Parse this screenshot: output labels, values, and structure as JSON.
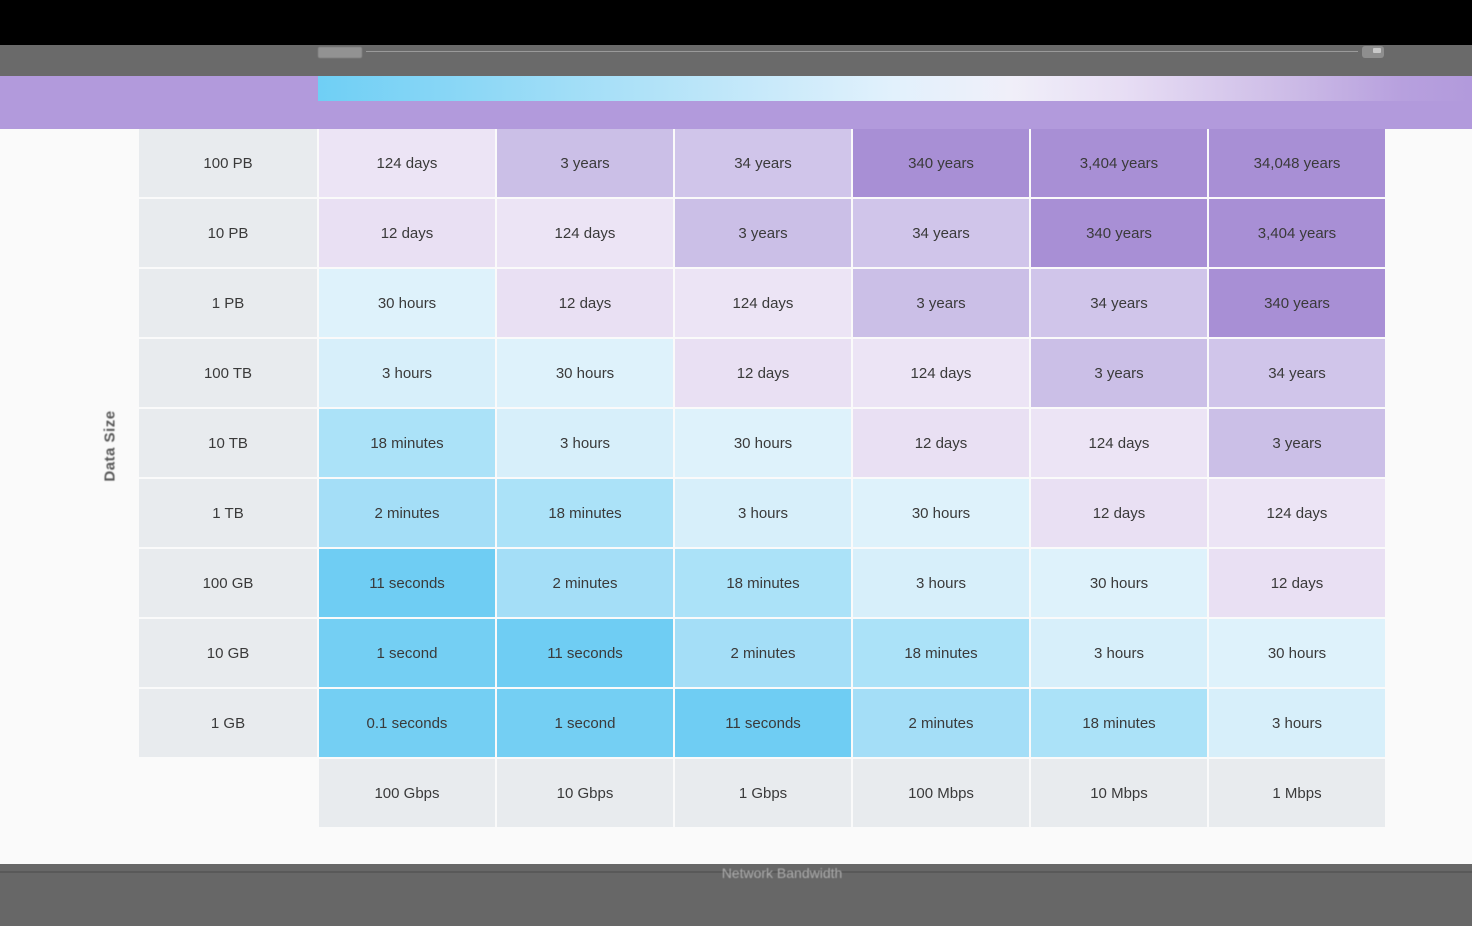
{
  "header": {
    "band_color": "#b29adc",
    "legend_gradient": [
      "#6fcff5",
      "#e2f1fc",
      "#b29adc"
    ]
  },
  "footer": {
    "label": "Network Bandwidth"
  },
  "chart_data": {
    "type": "heatmap",
    "title": "",
    "x_axis_label": "Network Bandwidth",
    "y_axis_label": "Data Size",
    "legend_position": "top",
    "legend_gradient": [
      "#6fcff5",
      "#e2f1fc",
      "#b29adc"
    ],
    "columns": [
      "100 Gbps",
      "10 Gbps",
      "1 Gbps",
      "100 Mbps",
      "10 Mbps",
      "1 Mbps"
    ],
    "rows": [
      "100 PB",
      "10 PB",
      "1 PB",
      "100 TB",
      "10 TB",
      "1 TB",
      "100 GB",
      "10 GB",
      "1 GB"
    ],
    "values": [
      [
        "124 days",
        "3 years",
        "34 years",
        "340 years",
        "3,404 years",
        "34,048 years"
      ],
      [
        "12 days",
        "124 days",
        "3 years",
        "34 years",
        "340 years",
        "3,404 years"
      ],
      [
        "30 hours",
        "12 days",
        "124 days",
        "3 years",
        "34 years",
        "340 years"
      ],
      [
        "3 hours",
        "30 hours",
        "12 days",
        "124 days",
        "3 years",
        "34 years"
      ],
      [
        "18 minutes",
        "3 hours",
        "30 hours",
        "12 days",
        "124 days",
        "3 years"
      ],
      [
        "2 minutes",
        "18 minutes",
        "3 hours",
        "30 hours",
        "12 days",
        "124 days"
      ],
      [
        "11 seconds",
        "2 minutes",
        "18 minutes",
        "3 hours",
        "30 hours",
        "12 days"
      ],
      [
        "1 second",
        "11 seconds",
        "2 minutes",
        "18 minutes",
        "3 hours",
        "30 hours"
      ],
      [
        "0.1 seconds",
        "1 second",
        "11 seconds",
        "2 minutes",
        "18 minutes",
        "3 hours"
      ]
    ],
    "color_scale": {
      "0.1 seconds": "#74cff3",
      "1 second": "#74cff3",
      "11 seconds": "#6fcdf3",
      "2 minutes": "#a4def7",
      "18 minutes": "#abe2f8",
      "3 hours": "#d7effa",
      "30 hours": "#def2fb",
      "12 days": "#e9e0f3",
      "124 days": "#ece4f5",
      "3 years": "#cbbfe7",
      "34 years": "#d0c5ea",
      "340 years": "#a88fd5",
      "3,404 years": "#a88fd5",
      "34,048 years": "#a88fd5"
    },
    "header_bg": "#e8ebee",
    "cell_text_color": "#3a3a3a",
    "grid_gap_color": "#fafafa"
  }
}
